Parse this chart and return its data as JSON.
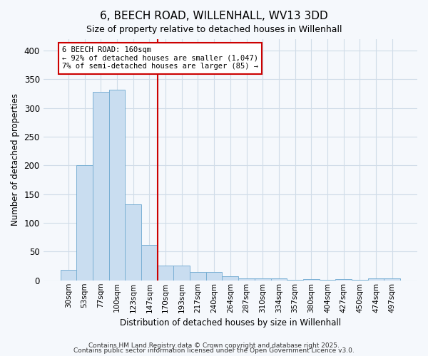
{
  "title": "6, BEECH ROAD, WILLENHALL, WV13 3DD",
  "subtitle": "Size of property relative to detached houses in Willenhall",
  "xlabel": "Distribution of detached houses by size in Willenhall",
  "ylabel": "Number of detached properties",
  "bar_color": "#c9ddf0",
  "bar_edge_color": "#7ab0d4",
  "background_color": "#f5f8fc",
  "plot_bg_color": "#f5f8fc",
  "grid_color": "#d0dce8",
  "categories": [
    "30sqm",
    "53sqm",
    "77sqm",
    "100sqm",
    "123sqm",
    "147sqm",
    "170sqm",
    "193sqm",
    "217sqm",
    "240sqm",
    "264sqm",
    "287sqm",
    "310sqm",
    "334sqm",
    "357sqm",
    "380sqm",
    "404sqm",
    "427sqm",
    "450sqm",
    "474sqm",
    "497sqm"
  ],
  "values": [
    18,
    200,
    328,
    332,
    132,
    62,
    26,
    26,
    15,
    15,
    7,
    4,
    4,
    3,
    1,
    2,
    1,
    2,
    1,
    4,
    4
  ],
  "red_line_index": 5.5,
  "annotation_line1": "6 BEECH ROAD: 160sqm",
  "annotation_line2": "← 92% of detached houses are smaller (1,047)",
  "annotation_line3": "7% of semi-detached houses are larger (85) →",
  "footer1": "Contains HM Land Registry data © Crown copyright and database right 2025.",
  "footer2": "Contains public sector information licensed under the Open Government Licence v3.0.",
  "ylim": [
    0,
    420
  ],
  "yticks": [
    0,
    50,
    100,
    150,
    200,
    250,
    300,
    350,
    400
  ]
}
